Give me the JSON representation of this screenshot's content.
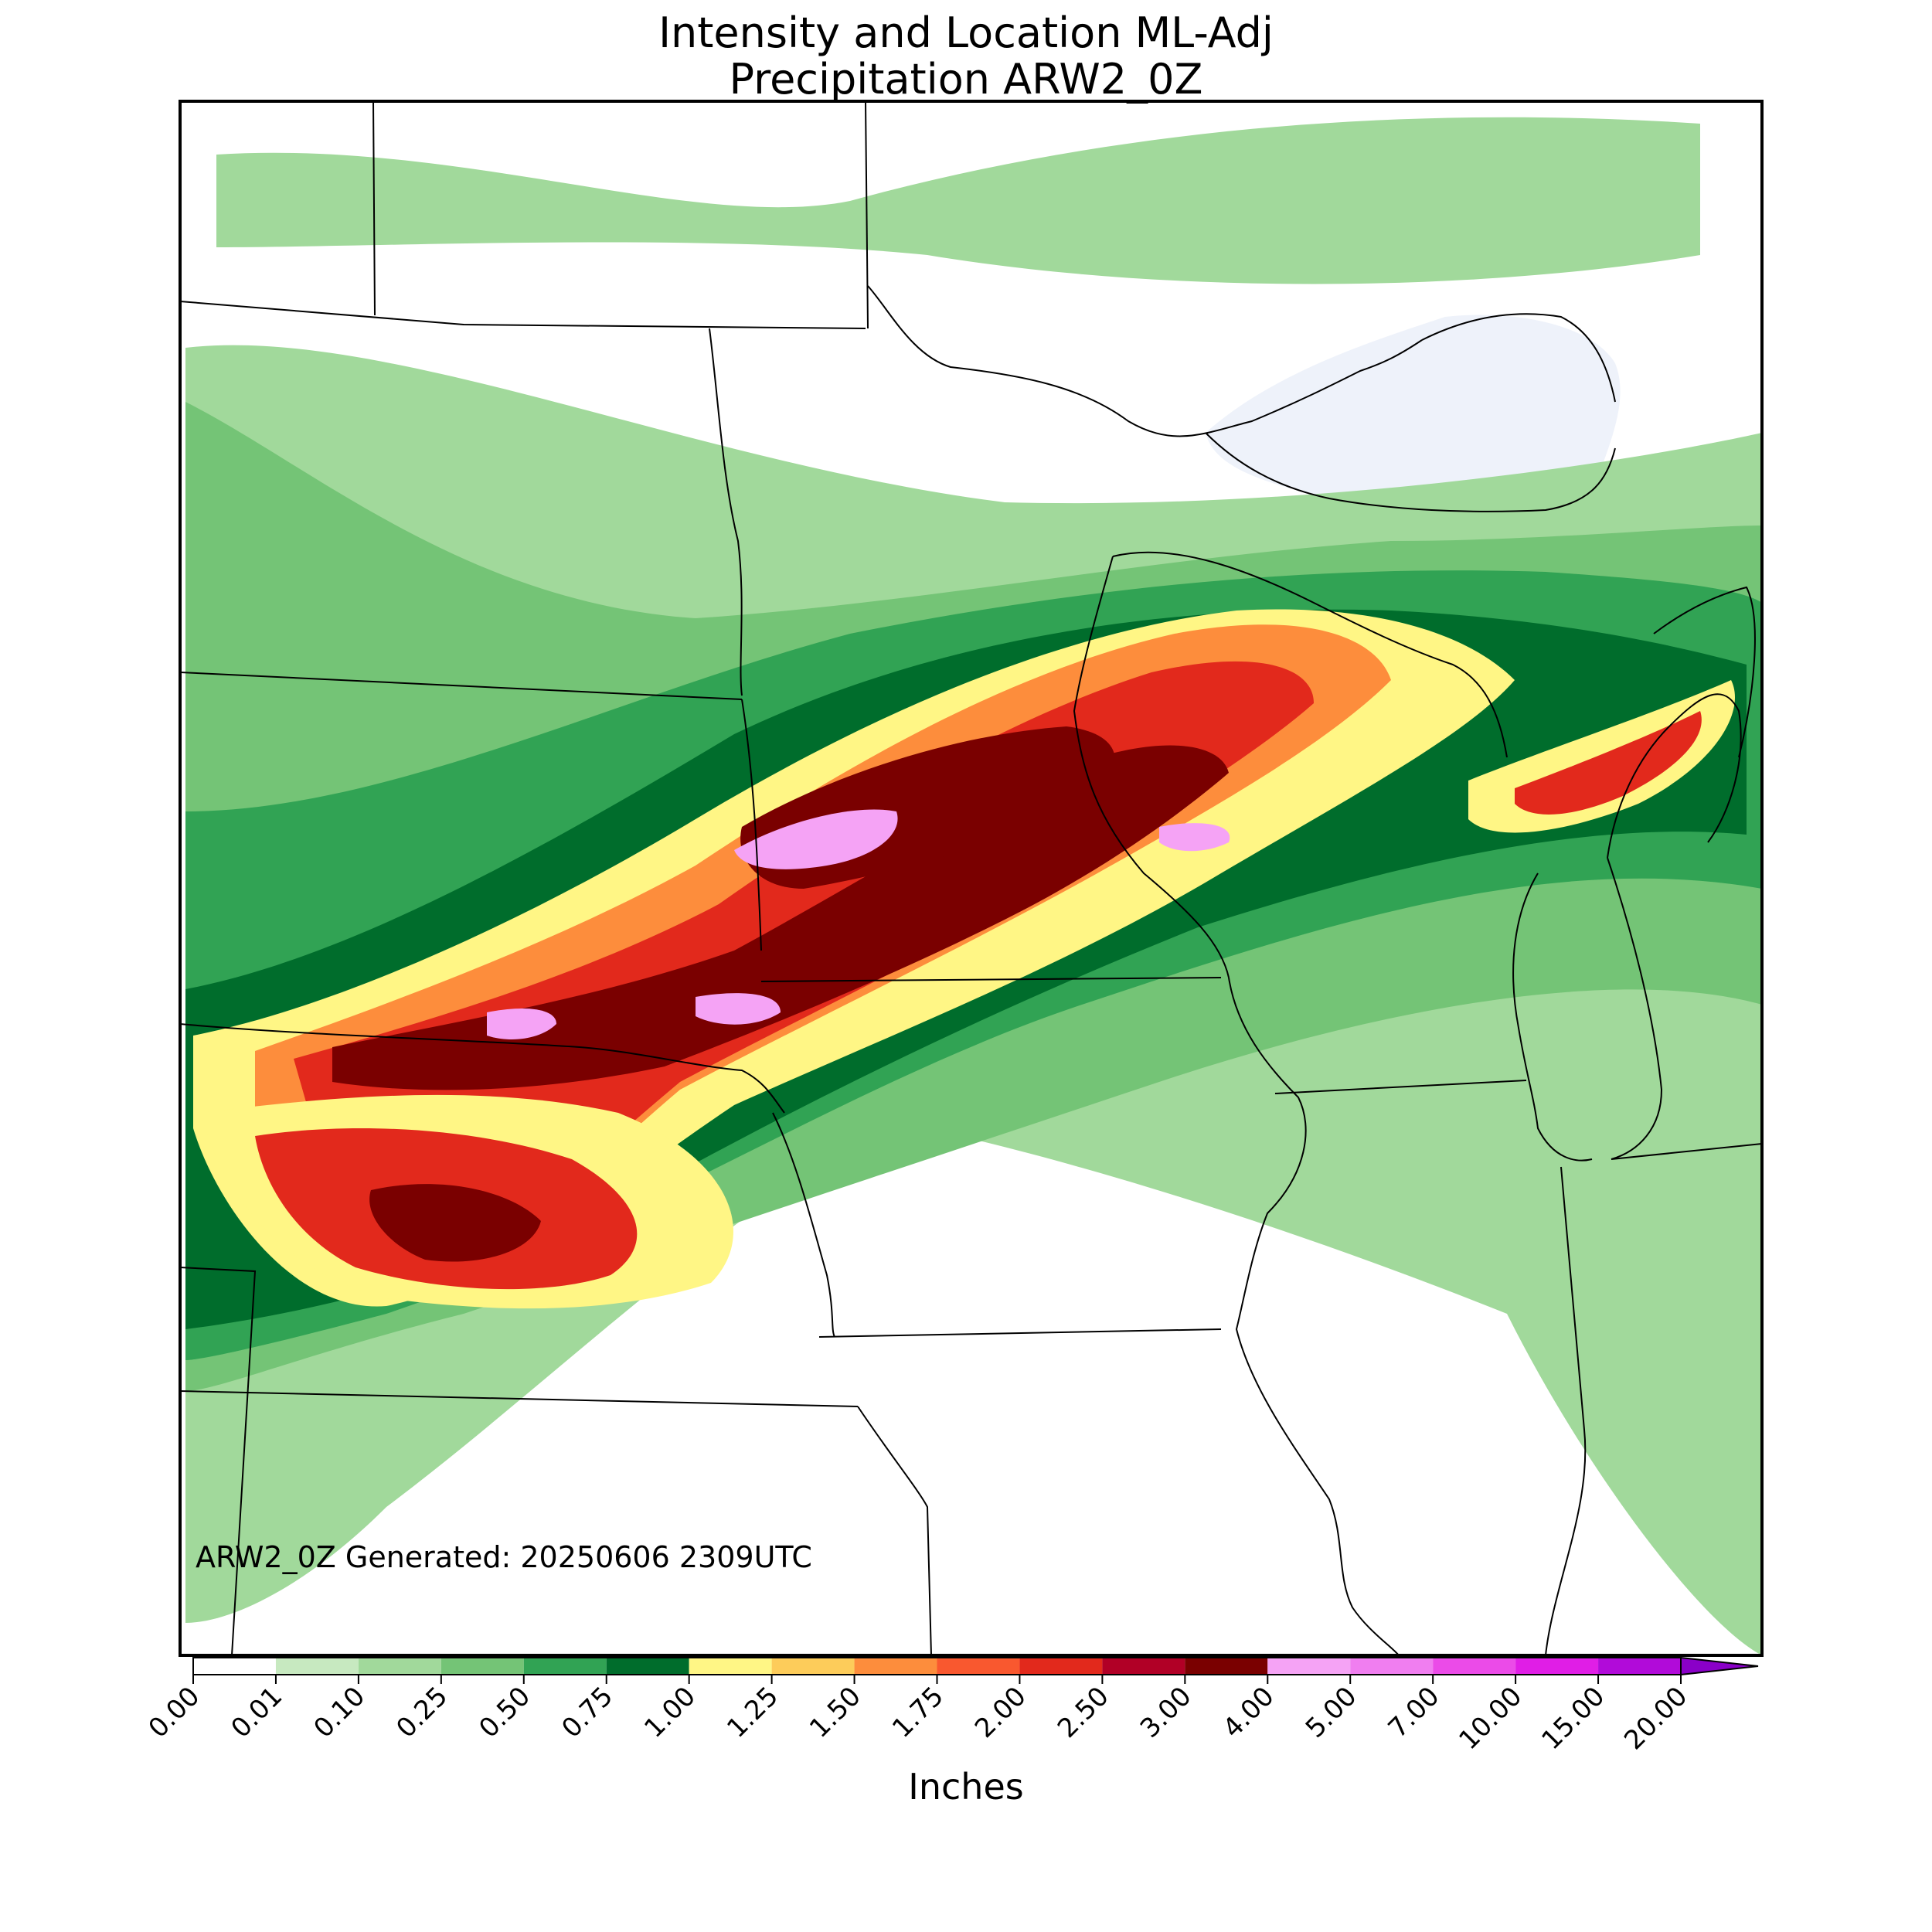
{
  "title": {
    "line1": "Intensity and Location ML-Adj",
    "line2": "Precipitation ARW2_0Z"
  },
  "stamp": "ARW2_0Z Generated: 20250606 2309UTC",
  "colorbar": {
    "units": "Inches",
    "ticks": [
      "0.00",
      "0.01",
      "0.10",
      "0.25",
      "0.50",
      "0.75",
      "1.00",
      "1.25",
      "1.50",
      "1.75",
      "2.00",
      "2.50",
      "3.00",
      "4.00",
      "5.00",
      "7.00",
      "10.00",
      "15.00",
      "20.00"
    ],
    "colors": [
      "#ffffff",
      "#c7e9c0",
      "#a1d99b",
      "#74c476",
      "#31a354",
      "#006d2c",
      "#fff685",
      "#fdcc5a",
      "#fd8d3c",
      "#f9582f",
      "#e2291c",
      "#b10026",
      "#7a0000",
      "#f5a3f5",
      "#f07ef0",
      "#eb4be8",
      "#e01ee6",
      "#b10bd9",
      "#8a00c8"
    ]
  },
  "map": {
    "water_color": "#eef2fa",
    "bands": [
      {
        "level": "0.10",
        "color": "#a1d99b"
      },
      {
        "level": "0.25",
        "color": "#74c476"
      },
      {
        "level": "0.50",
        "color": "#31a354"
      },
      {
        "level": "0.75",
        "color": "#006d2c"
      },
      {
        "level": "1.00",
        "color": "#fff685"
      },
      {
        "level": "1.50",
        "color": "#fd8d3c"
      },
      {
        "level": "2.00",
        "color": "#e2291c"
      },
      {
        "level": "3.00",
        "color": "#7a0000"
      },
      {
        "level": "4.00",
        "color": "#f5a3f5"
      }
    ]
  }
}
